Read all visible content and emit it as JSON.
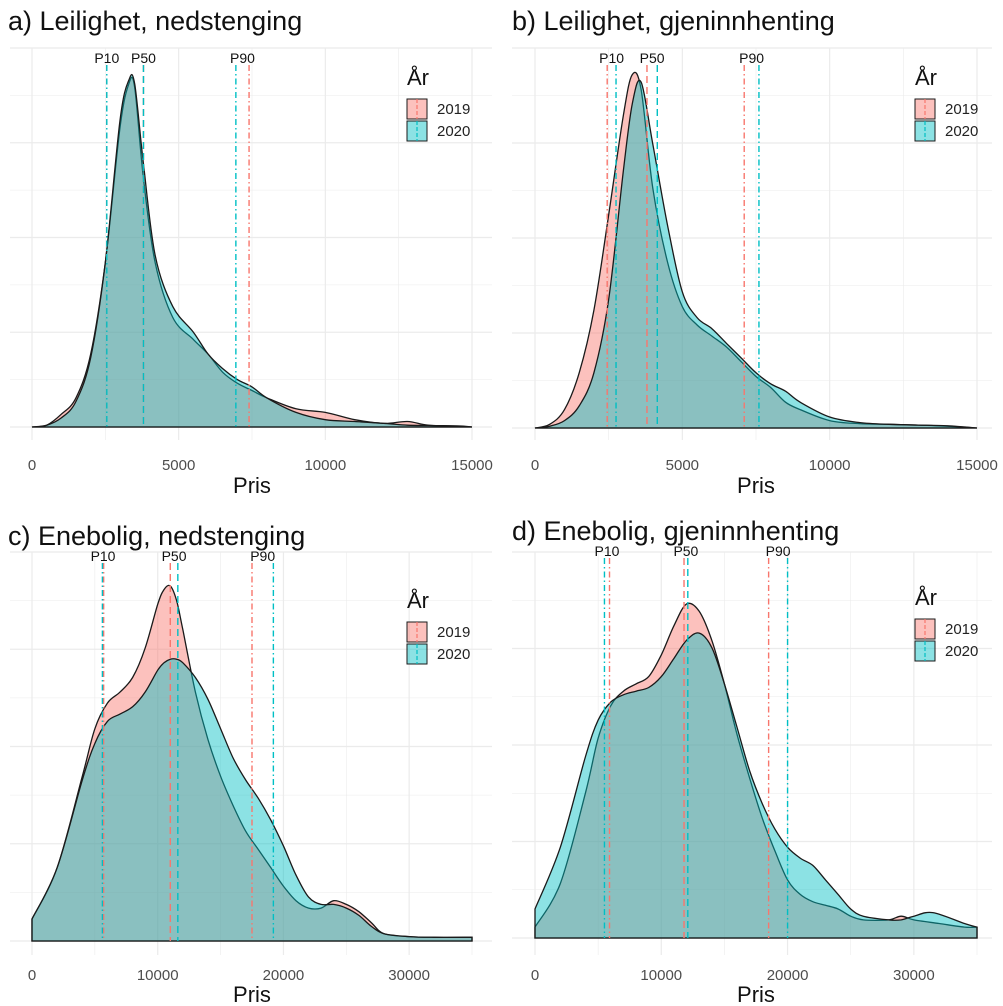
{
  "colors": {
    "y2019": "#F8766D",
    "y2020": "#00BFC4",
    "outline": "#1a1a1a",
    "grid": "#ebebeb"
  },
  "chart_data": [
    {
      "type": "area",
      "title": "a) Leilighet, nedstenging",
      "xlabel": "Pris",
      "xlim": [
        0,
        15000
      ],
      "xticks": [
        0,
        5000,
        10000,
        15000
      ],
      "xtick_labels": [
        "0",
        "5000",
        "10000",
        "15000"
      ],
      "legend": {
        "title": "År",
        "entries": [
          "2019",
          "2020"
        ],
        "placement": "top-right"
      },
      "percentiles": [
        {
          "label": "P10",
          "v2019": 2550,
          "v2020": 2550
        },
        {
          "label": "P50",
          "v2019": 3800,
          "v2020": 3800
        },
        {
          "label": "P90",
          "v2019": 7400,
          "v2020": 6950
        }
      ],
      "series": [
        {
          "name": "2019",
          "x": [
            0,
            500,
            1000,
            1500,
            2000,
            2500,
            3000,
            3300,
            3500,
            3800,
            4200,
            4800,
            5500,
            6000,
            6500,
            7000,
            7500,
            8000,
            9000,
            10000,
            11000,
            12000,
            12800,
            13500,
            14500,
            15000
          ],
          "y": [
            0,
            0.005,
            0.035,
            0.08,
            0.2,
            0.45,
            0.82,
            0.94,
            0.93,
            0.68,
            0.45,
            0.3,
            0.24,
            0.2,
            0.15,
            0.12,
            0.1,
            0.08,
            0.05,
            0.04,
            0.02,
            0.01,
            0.015,
            0.005,
            0.002,
            0
          ]
        },
        {
          "name": "2020",
          "x": [
            0,
            500,
            1000,
            1500,
            2000,
            2500,
            3000,
            3300,
            3500,
            3800,
            4200,
            4800,
            5500,
            6000,
            6500,
            7000,
            7500,
            8000,
            9000,
            10000,
            11000,
            12000,
            12800,
            13500,
            14500,
            15000
          ],
          "y": [
            0,
            0.005,
            0.025,
            0.07,
            0.19,
            0.45,
            0.84,
            0.95,
            0.94,
            0.72,
            0.47,
            0.33,
            0.26,
            0.2,
            0.16,
            0.13,
            0.11,
            0.08,
            0.04,
            0.02,
            0.015,
            0.01,
            0.005,
            0.004,
            0.003,
            0
          ]
        }
      ]
    },
    {
      "type": "area",
      "title": "b) Leilighet, gjeninnhenting",
      "xlabel": "Pris",
      "xlim": [
        0,
        15000
      ],
      "xticks": [
        0,
        5000,
        10000,
        15000
      ],
      "xtick_labels": [
        "0",
        "5000",
        "10000",
        "15000"
      ],
      "legend": {
        "title": "År",
        "entries": [
          "2019",
          "2020"
        ],
        "placement": "top-right"
      },
      "percentiles": [
        {
          "label": "P10",
          "v2019": 2450,
          "v2020": 2750
        },
        {
          "label": "P50",
          "v2019": 3800,
          "v2020": 4150
        },
        {
          "label": "P90",
          "v2019": 7100,
          "v2020": 7600
        }
      ],
      "series": [
        {
          "name": "2019",
          "x": [
            0,
            500,
            1000,
            1500,
            2000,
            2500,
            3000,
            3300,
            3600,
            4000,
            4500,
            5000,
            5500,
            6000,
            6500,
            7000,
            7500,
            8000,
            8500,
            9000,
            10000,
            11000,
            12000,
            13000,
            14000,
            15000
          ],
          "y": [
            0,
            0.01,
            0.05,
            0.15,
            0.32,
            0.58,
            0.85,
            0.96,
            0.92,
            0.65,
            0.45,
            0.33,
            0.28,
            0.25,
            0.22,
            0.18,
            0.14,
            0.11,
            0.07,
            0.05,
            0.02,
            0.012,
            0.01,
            0.008,
            0.005,
            0
          ]
        },
        {
          "name": "2020",
          "x": [
            0,
            500,
            1000,
            1500,
            2000,
            2500,
            3000,
            3300,
            3600,
            4000,
            4500,
            5000,
            5500,
            6000,
            6500,
            7000,
            7500,
            8000,
            8500,
            9000,
            10000,
            11000,
            12000,
            13000,
            14000,
            15000
          ],
          "y": [
            0,
            0.005,
            0.02,
            0.06,
            0.15,
            0.35,
            0.7,
            0.88,
            0.94,
            0.77,
            0.55,
            0.37,
            0.3,
            0.27,
            0.23,
            0.19,
            0.15,
            0.12,
            0.1,
            0.07,
            0.03,
            0.015,
            0.01,
            0.008,
            0.006,
            0
          ]
        }
      ]
    },
    {
      "type": "area",
      "title": "c) Enebolig, nedstenging",
      "xlabel": "Pris",
      "xlim": [
        0,
        35000
      ],
      "xticks": [
        0,
        10000,
        20000,
        30000
      ],
      "xtick_labels": [
        "0",
        "10000",
        "20000",
        "30000"
      ],
      "legend": {
        "title": "År",
        "entries": [
          "2019",
          "2020"
        ],
        "placement": "top-right"
      },
      "percentiles": [
        {
          "label": "P10",
          "v2019": 5700,
          "v2020": 5600
        },
        {
          "label": "P50",
          "v2019": 11000,
          "v2020": 11600
        },
        {
          "label": "P90",
          "v2019": 17500,
          "v2020": 19200
        }
      ],
      "series": [
        {
          "name": "2019",
          "x": [
            0,
            2000,
            4000,
            5000,
            6000,
            7000,
            8000,
            9000,
            10000,
            10500,
            11000,
            11500,
            12000,
            13000,
            14000,
            15000,
            16000,
            17000,
            18000,
            19000,
            20000,
            21000,
            22000,
            23000,
            24000,
            25000,
            26000,
            27000,
            28000,
            30000,
            32000,
            35000
          ],
          "y": [
            0.06,
            0.2,
            0.45,
            0.58,
            0.65,
            0.68,
            0.72,
            0.8,
            0.92,
            0.96,
            0.97,
            0.93,
            0.85,
            0.68,
            0.55,
            0.45,
            0.37,
            0.3,
            0.25,
            0.2,
            0.15,
            0.11,
            0.09,
            0.09,
            0.11,
            0.1,
            0.08,
            0.05,
            0.02,
            0.012,
            0.01,
            0.01
          ]
        },
        {
          "name": "2020",
          "x": [
            0,
            2000,
            4000,
            5000,
            6000,
            7000,
            8000,
            9000,
            10000,
            10500,
            11000,
            11500,
            12000,
            13000,
            14000,
            15000,
            16000,
            17000,
            18000,
            19000,
            20000,
            21000,
            22000,
            23000,
            24000,
            25000,
            26000,
            27000,
            28000,
            30000,
            32000,
            35000
          ],
          "y": [
            0.06,
            0.2,
            0.44,
            0.54,
            0.6,
            0.62,
            0.64,
            0.68,
            0.74,
            0.76,
            0.77,
            0.77,
            0.76,
            0.72,
            0.66,
            0.58,
            0.5,
            0.44,
            0.39,
            0.33,
            0.26,
            0.18,
            0.12,
            0.1,
            0.1,
            0.09,
            0.07,
            0.04,
            0.02,
            0.012,
            0.01,
            0.01
          ]
        }
      ]
    },
    {
      "type": "area",
      "title": "d) Enebolig, gjeninnhenting",
      "xlabel": "Pris",
      "xlim": [
        0,
        35000
      ],
      "xticks": [
        0,
        10000,
        20000,
        30000
      ],
      "xtick_labels": [
        "0",
        "10000",
        "20000",
        "30000"
      ],
      "legend": {
        "title": "År",
        "entries": [
          "2019",
          "2020"
        ],
        "placement": "top-right"
      },
      "percentiles": [
        {
          "label": "P10",
          "v2019": 5900,
          "v2020": 5500
        },
        {
          "label": "P50",
          "v2019": 11800,
          "v2020": 12100
        },
        {
          "label": "P90",
          "v2019": 18500,
          "v2020": 20000
        }
      ],
      "series": [
        {
          "name": "2019",
          "x": [
            0,
            2000,
            4000,
            5000,
            6000,
            7000,
            8000,
            9000,
            10000,
            11000,
            12000,
            13000,
            14000,
            15000,
            16000,
            17000,
            18000,
            19000,
            20000,
            21000,
            22000,
            23000,
            24000,
            25000,
            26000,
            28000,
            29000,
            30000,
            32000,
            34000,
            35000
          ],
          "y": [
            0.03,
            0.15,
            0.4,
            0.55,
            0.64,
            0.68,
            0.7,
            0.72,
            0.78,
            0.86,
            0.92,
            0.9,
            0.82,
            0.7,
            0.56,
            0.44,
            0.33,
            0.24,
            0.16,
            0.12,
            0.1,
            0.09,
            0.08,
            0.06,
            0.05,
            0.05,
            0.06,
            0.05,
            0.04,
            0.03,
            0.03
          ]
        },
        {
          "name": "2020",
          "x": [
            0,
            2000,
            4000,
            5000,
            6000,
            7000,
            8000,
            9000,
            10000,
            11000,
            12000,
            13000,
            14000,
            15000,
            16000,
            17000,
            18000,
            19000,
            20000,
            21000,
            22000,
            23000,
            24000,
            25000,
            26000,
            28000,
            29000,
            30000,
            31500,
            34000,
            35000
          ],
          "y": [
            0.08,
            0.25,
            0.5,
            0.6,
            0.65,
            0.67,
            0.68,
            0.69,
            0.72,
            0.77,
            0.82,
            0.84,
            0.8,
            0.7,
            0.58,
            0.46,
            0.37,
            0.3,
            0.25,
            0.22,
            0.2,
            0.16,
            0.12,
            0.08,
            0.06,
            0.05,
            0.05,
            0.06,
            0.07,
            0.04,
            0.03
          ]
        }
      ]
    }
  ]
}
